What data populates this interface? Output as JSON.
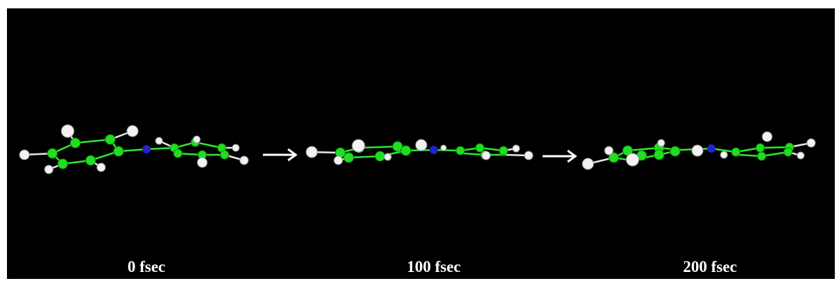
{
  "frames": [
    {
      "label": "0 fsec"
    },
    {
      "label": "100 fsec"
    },
    {
      "label": "200 fsec"
    }
  ]
}
